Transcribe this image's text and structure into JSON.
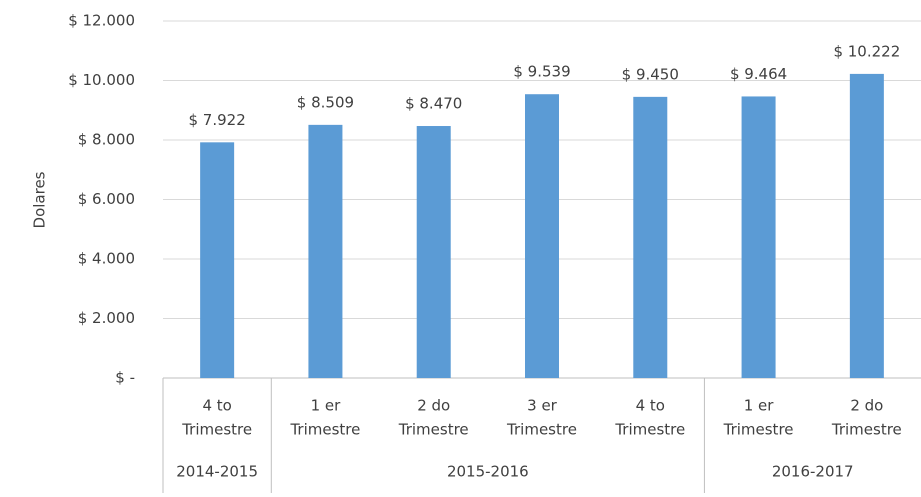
{
  "chart_data": {
    "type": "bar",
    "y_axis_label": "Dolares",
    "categories": [
      [
        "4 to",
        "Trimestre"
      ],
      [
        "1 er",
        "Trimestre"
      ],
      [
        "2 do",
        "Trimestre"
      ],
      [
        "3 er",
        "Trimestre"
      ],
      [
        "4 to",
        "Trimestre"
      ],
      [
        "1 er",
        "Trimestre"
      ],
      [
        "2 do",
        "Trimestre"
      ]
    ],
    "groups": [
      {
        "label": "2014-2015",
        "count": 1
      },
      {
        "label": "2015-2016",
        "count": 4
      },
      {
        "label": "2016-2017",
        "count": 2
      }
    ],
    "values": [
      7922,
      8509,
      8470,
      9539,
      9450,
      9464,
      10222
    ],
    "value_labels": [
      "$ 7.922",
      "$ 8.509",
      "$ 8.470",
      "$ 9.539",
      "$ 9.450",
      "$ 9.464",
      "$ 10.222"
    ],
    "color": "#5b9bd5",
    "ylim": [
      0,
      12000
    ],
    "yticks": [
      {
        "value": 0,
        "label": "$ -"
      },
      {
        "value": 2000,
        "label": "$ 2.000"
      },
      {
        "value": 4000,
        "label": "$ 4.000"
      },
      {
        "value": 6000,
        "label": "$ 6.000"
      },
      {
        "value": 8000,
        "label": "$ 8.000"
      },
      {
        "value": 10000,
        "label": "$ 10.000"
      },
      {
        "value": 12000,
        "label": "$ 12.000"
      }
    ],
    "grid": true
  }
}
